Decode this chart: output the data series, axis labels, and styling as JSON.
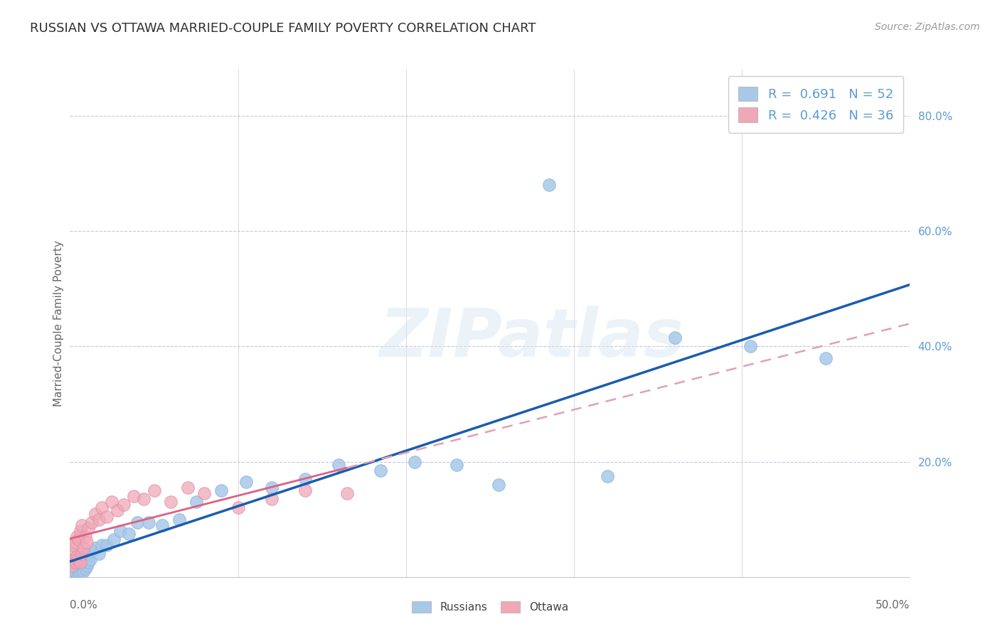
{
  "title": "RUSSIAN VS OTTAWA MARRIED-COUPLE FAMILY POVERTY CORRELATION CHART",
  "source": "Source: ZipAtlas.com",
  "ylabel": "Married-Couple Family Poverty",
  "xlim": [
    0.0,
    0.5
  ],
  "ylim": [
    0.0,
    0.88
  ],
  "russian_R": 0.691,
  "russian_N": 52,
  "ottawa_R": 0.426,
  "ottawa_N": 36,
  "russian_color": "#a8c8e8",
  "russian_edge_color": "#90b8e0",
  "ottawa_color": "#f0a8b8",
  "ottawa_edge_color": "#e090a8",
  "russian_line_color": "#1a5cb0",
  "ottawa_solid_color": "#e06080",
  "ottawa_dash_color": "#e0a0b8",
  "legend_label_russian": "Russians",
  "legend_label_ottawa": "Ottawa",
  "watermark": "ZIPatlas",
  "background_color": "#ffffff",
  "grid_color": "#c8c8d8",
  "title_color": "#303030",
  "source_color": "#999999",
  "ytick_color": "#5b9bd5",
  "label_color": "#666666",
  "russians_x": [
    0.001,
    0.001,
    0.002,
    0.002,
    0.003,
    0.003,
    0.003,
    0.004,
    0.004,
    0.005,
    0.005,
    0.005,
    0.006,
    0.006,
    0.007,
    0.007,
    0.007,
    0.008,
    0.008,
    0.009,
    0.009,
    0.01,
    0.01,
    0.011,
    0.012,
    0.013,
    0.015,
    0.017,
    0.019,
    0.022,
    0.026,
    0.03,
    0.035,
    0.04,
    0.047,
    0.055,
    0.065,
    0.075,
    0.09,
    0.105,
    0.12,
    0.14,
    0.16,
    0.185,
    0.205,
    0.23,
    0.255,
    0.285,
    0.32,
    0.36,
    0.405,
    0.45
  ],
  "russians_y": [
    0.01,
    0.02,
    0.01,
    0.03,
    0.01,
    0.02,
    0.03,
    0.015,
    0.025,
    0.01,
    0.02,
    0.035,
    0.01,
    0.025,
    0.015,
    0.025,
    0.04,
    0.01,
    0.03,
    0.015,
    0.035,
    0.02,
    0.04,
    0.025,
    0.03,
    0.045,
    0.05,
    0.04,
    0.055,
    0.055,
    0.065,
    0.08,
    0.075,
    0.095,
    0.095,
    0.09,
    0.1,
    0.13,
    0.15,
    0.165,
    0.155,
    0.17,
    0.195,
    0.185,
    0.2,
    0.195,
    0.16,
    0.68,
    0.175,
    0.415,
    0.4,
    0.38
  ],
  "ottawa_x": [
    0.001,
    0.001,
    0.002,
    0.002,
    0.003,
    0.003,
    0.004,
    0.004,
    0.005,
    0.005,
    0.006,
    0.006,
    0.007,
    0.007,
    0.008,
    0.009,
    0.01,
    0.011,
    0.013,
    0.015,
    0.017,
    0.019,
    0.022,
    0.025,
    0.028,
    0.032,
    0.038,
    0.044,
    0.05,
    0.06,
    0.07,
    0.08,
    0.1,
    0.12,
    0.14,
    0.165
  ],
  "ottawa_y": [
    0.02,
    0.04,
    0.03,
    0.055,
    0.025,
    0.06,
    0.035,
    0.07,
    0.03,
    0.065,
    0.025,
    0.08,
    0.04,
    0.09,
    0.05,
    0.07,
    0.06,
    0.085,
    0.095,
    0.11,
    0.1,
    0.12,
    0.105,
    0.13,
    0.115,
    0.125,
    0.14,
    0.135,
    0.15,
    0.13,
    0.155,
    0.145,
    0.12,
    0.135,
    0.15,
    0.145
  ]
}
